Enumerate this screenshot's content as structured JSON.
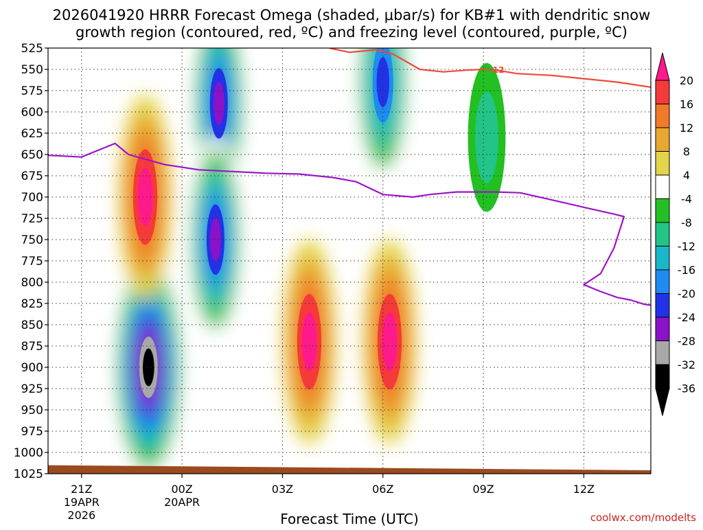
{
  "chart_data": {
    "type": "heatmap",
    "title": {
      "line1": "2026041920 HRRR Forecast Omega (shaded, μbar/s) for KB#1 with dendritic snow",
      "line2": "growth region (contoured, red, ºC) and freezing level (contoured, purple, ºC)"
    },
    "xlabel": "Forecast Time (UTC)",
    "ylabel": "",
    "credit": "coolwx.com/modelts",
    "y_ticks": [
      "525",
      "550",
      "575",
      "600",
      "625",
      "650",
      "675",
      "700",
      "725",
      "750",
      "775",
      "800",
      "825",
      "850",
      "875",
      "900",
      "925",
      "950",
      "975",
      "1000",
      "1025"
    ],
    "x_ticks": [
      {
        "hour": 1,
        "label": "21Z",
        "sub1": "19APR",
        "sub2": "2026"
      },
      {
        "hour": 4,
        "label": "00Z",
        "sub1": "20APR",
        "sub2": ""
      },
      {
        "hour": 7,
        "label": "03Z",
        "sub1": "",
        "sub2": ""
      },
      {
        "hour": 10,
        "label": "06Z",
        "sub1": "",
        "sub2": ""
      },
      {
        "hour": 13,
        "label": "09Z",
        "sub1": "",
        "sub2": ""
      },
      {
        "hour": 16,
        "label": "12Z",
        "sub1": "",
        "sub2": ""
      }
    ],
    "xlim_hours": [
      0,
      18
    ],
    "ylim_hpa": [
      1025,
      525
    ],
    "grid": true,
    "colorbar": {
      "labels": [
        "20",
        "16",
        "12",
        "8",
        "4",
        "-4",
        "-8",
        "-12",
        "-16",
        "-20",
        "-24",
        "-28",
        "-32",
        "-36"
      ],
      "colors": [
        "#ff1a8c",
        "#f53a3a",
        "#f07a28",
        "#e8a830",
        "#e3d44a",
        "#ffffff",
        "#22c022",
        "#22c488",
        "#18b8c8",
        "#1e8cf0",
        "#2232e6",
        "#8a12c8",
        "#a8a8a8",
        "#000000"
      ]
    },
    "omega_features": [
      {
        "kind": "rising-strong",
        "center_hour": 3.0,
        "center_hpa": 900,
        "peak": -38
      },
      {
        "kind": "rising",
        "center_hour": 5.1,
        "center_hpa": 590,
        "peak": -30
      },
      {
        "kind": "rising",
        "center_hour": 5.0,
        "center_hpa": 750,
        "peak": -30
      },
      {
        "kind": "rising",
        "center_hour": 10.0,
        "center_hpa": 565,
        "peak": -24
      },
      {
        "kind": "rising",
        "center_hour": 13.1,
        "center_hpa": 630,
        "peak": -14
      },
      {
        "kind": "sinking",
        "center_hour": 2.9,
        "center_hpa": 700,
        "peak": 26
      },
      {
        "kind": "sinking",
        "center_hour": 7.8,
        "center_hpa": 870,
        "peak": 24
      },
      {
        "kind": "sinking",
        "center_hour": 10.2,
        "center_hpa": 870,
        "peak": 24
      }
    ],
    "series": [
      {
        "name": "-12",
        "color": "#f04838",
        "points": [
          [
            8.4,
            525
          ],
          [
            9.0,
            530
          ],
          [
            9.8,
            527
          ],
          [
            10.3,
            532
          ],
          [
            11.1,
            550
          ],
          [
            11.8,
            553
          ],
          [
            12.5,
            551
          ],
          [
            13.0,
            550
          ],
          [
            13.4,
            551
          ],
          [
            14.0,
            555
          ],
          [
            15.0,
            557
          ],
          [
            16.0,
            561
          ],
          [
            17.0,
            565
          ],
          [
            18.0,
            571
          ]
        ]
      },
      {
        "name": "",
        "color": "#9b14c8",
        "points": [
          [
            0.0,
            651
          ],
          [
            1.0,
            653
          ],
          [
            2.0,
            637
          ],
          [
            2.4,
            650
          ],
          [
            3.5,
            662
          ],
          [
            4.5,
            668
          ],
          [
            5.5,
            670
          ],
          [
            6.5,
            672
          ],
          [
            7.5,
            673
          ],
          [
            8.5,
            677
          ],
          [
            9.2,
            682
          ],
          [
            10.0,
            697
          ],
          [
            10.9,
            700
          ],
          [
            11.4,
            697
          ],
          [
            12.2,
            694
          ],
          [
            13.4,
            694
          ],
          [
            14.1,
            695
          ],
          [
            15.0,
            703
          ],
          [
            16.0,
            712
          ],
          [
            16.9,
            720
          ],
          [
            17.2,
            723
          ],
          [
            16.9,
            760
          ],
          [
            16.5,
            790
          ],
          [
            16.0,
            803
          ],
          [
            16.5,
            811
          ],
          [
            17.0,
            818
          ],
          [
            17.4,
            821
          ],
          [
            17.8,
            826
          ],
          [
            18.0,
            827
          ]
        ]
      }
    ]
  }
}
